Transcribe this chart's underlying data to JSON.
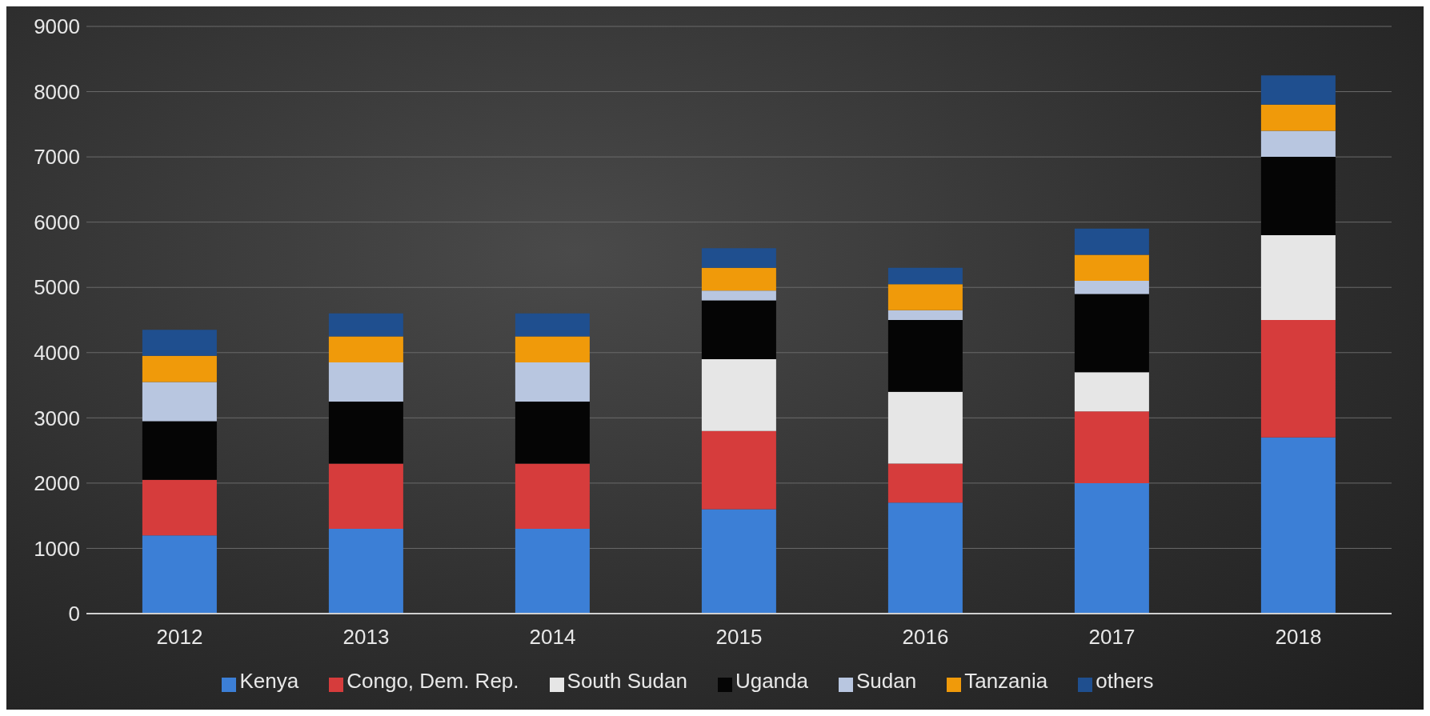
{
  "chart_data": {
    "type": "bar",
    "stacked": true,
    "categories": [
      "2012",
      "2013",
      "2014",
      "2015",
      "2016",
      "2017",
      "2018"
    ],
    "series": [
      {
        "name": "Kenya",
        "color": "#3c7fd6",
        "values": [
          1200,
          1300,
          1300,
          1600,
          1700,
          2000,
          2700
        ]
      },
      {
        "name": "Congo, Dem. Rep.",
        "color": "#d63c3c",
        "values": [
          850,
          1000,
          1000,
          1200,
          600,
          1100,
          1800
        ]
      },
      {
        "name": "South Sudan",
        "color": "#e6e6e6",
        "values": [
          0,
          0,
          0,
          1100,
          1100,
          600,
          1300
        ]
      },
      {
        "name": "Uganda",
        "color": "#050505",
        "values": [
          900,
          950,
          950,
          900,
          1100,
          1200,
          1200
        ]
      },
      {
        "name": "Sudan",
        "color": "#b8c6e0",
        "values": [
          600,
          600,
          600,
          150,
          150,
          200,
          400
        ]
      },
      {
        "name": "Tanzania",
        "color": "#f09a0a",
        "values": [
          400,
          400,
          400,
          350,
          400,
          400,
          400
        ]
      },
      {
        "name": "others",
        "color": "#1f4f8f",
        "values": [
          400,
          350,
          350,
          300,
          250,
          400,
          450
        ]
      }
    ],
    "ylim": [
      0,
      9000
    ],
    "yticks": [
      0,
      1000,
      2000,
      3000,
      4000,
      5000,
      6000,
      7000,
      8000,
      9000
    ],
    "grid": "y",
    "legend": "bottom"
  }
}
